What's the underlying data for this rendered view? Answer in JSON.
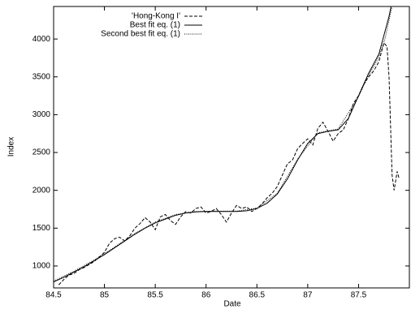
{
  "chart_data": {
    "type": "line",
    "x_label": "Date",
    "y_label": "Index",
    "xlim": [
      84.5,
      88.0
    ],
    "ylim": [
      710,
      4430
    ],
    "xticks": [
      84.5,
      85,
      85.5,
      86,
      86.5,
      87,
      87.5
    ],
    "yticks": [
      1000,
      1500,
      2000,
      2500,
      3000,
      3500,
      4000
    ],
    "legend": "top-left",
    "series": [
      {
        "name": "'Hong-Kong I'",
        "color": "#000000",
        "dash": "dashed",
        "x": [
          84.55,
          84.6,
          84.65,
          84.7,
          84.75,
          84.8,
          84.85,
          84.9,
          84.95,
          85.0,
          85.05,
          85.1,
          85.15,
          85.2,
          85.25,
          85.3,
          85.35,
          85.4,
          85.45,
          85.5,
          85.55,
          85.6,
          85.65,
          85.7,
          85.75,
          85.8,
          85.85,
          85.9,
          85.95,
          86.0,
          86.05,
          86.1,
          86.15,
          86.2,
          86.25,
          86.3,
          86.35,
          86.4,
          86.45,
          86.5,
          86.55,
          86.6,
          86.65,
          86.7,
          86.75,
          86.8,
          86.85,
          86.9,
          86.95,
          87.0,
          87.05,
          87.1,
          87.15,
          87.2,
          87.25,
          87.3,
          87.35,
          87.4,
          87.45,
          87.5,
          87.55,
          87.6,
          87.65,
          87.7,
          87.75,
          87.78,
          87.8,
          87.83,
          87.85,
          87.88,
          87.9
        ],
        "values": [
          750,
          820,
          880,
          900,
          950,
          980,
          1020,
          1060,
          1120,
          1180,
          1300,
          1360,
          1380,
          1330,
          1400,
          1500,
          1560,
          1640,
          1580,
          1480,
          1650,
          1680,
          1600,
          1550,
          1650,
          1720,
          1700,
          1760,
          1780,
          1700,
          1720,
          1760,
          1680,
          1580,
          1700,
          1800,
          1760,
          1780,
          1720,
          1760,
          1820,
          1900,
          1960,
          2050,
          2200,
          2350,
          2400,
          2550,
          2620,
          2680,
          2600,
          2820,
          2900,
          2780,
          2650,
          2750,
          2800,
          2950,
          3150,
          3250,
          3400,
          3500,
          3580,
          3700,
          3950,
          3900,
          3500,
          2200,
          2000,
          2250,
          2150
        ]
      },
      {
        "name": "Best fit eq. (1)",
        "color": "#000000",
        "dash": "solid",
        "x": [
          84.5,
          84.6,
          84.7,
          84.8,
          84.9,
          85.0,
          85.1,
          85.2,
          85.3,
          85.4,
          85.5,
          85.6,
          85.7,
          85.8,
          85.9,
          86.0,
          86.1,
          86.2,
          86.3,
          86.4,
          86.5,
          86.6,
          86.7,
          86.8,
          86.9,
          87.0,
          87.1,
          87.2,
          87.3,
          87.4,
          87.5,
          87.6,
          87.7,
          87.75,
          87.8,
          87.82
        ],
        "values": [
          790,
          850,
          920,
          990,
          1070,
          1150,
          1240,
          1330,
          1420,
          1500,
          1570,
          1620,
          1670,
          1700,
          1715,
          1720,
          1720,
          1720,
          1720,
          1730,
          1760,
          1830,
          1950,
          2150,
          2400,
          2620,
          2750,
          2780,
          2800,
          2950,
          3250,
          3550,
          3800,
          4050,
          4300,
          4430
        ]
      },
      {
        "name": "Second best fit eq. (1)",
        "color": "#000000",
        "dash": "dotted",
        "x": [
          84.5,
          84.7,
          84.9,
          85.1,
          85.3,
          85.5,
          85.7,
          85.9,
          86.1,
          86.3,
          86.5,
          86.7,
          86.9,
          87.1,
          87.3,
          87.5,
          87.6,
          87.7,
          87.76,
          87.8,
          87.83
        ],
        "values": [
          800,
          930,
          1080,
          1250,
          1430,
          1580,
          1680,
          1720,
          1725,
          1725,
          1765,
          1960,
          2410,
          2760,
          2810,
          3240,
          3520,
          3760,
          4000,
          4250,
          4430
        ]
      }
    ]
  }
}
